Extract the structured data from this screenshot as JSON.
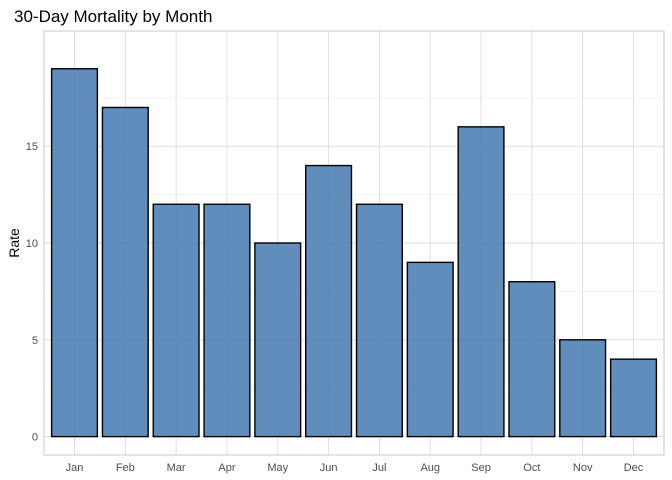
{
  "chart_data": {
    "type": "bar",
    "title": "30-Day Mortality by Month",
    "xlabel": "",
    "ylabel": "Rate",
    "categories": [
      "Jan",
      "Feb",
      "Mar",
      "Apr",
      "May",
      "Jun",
      "Jul",
      "Aug",
      "Sep",
      "Oct",
      "Nov",
      "Dec"
    ],
    "values": [
      19,
      17,
      12,
      12,
      10,
      14,
      12,
      9,
      16,
      8,
      5,
      4
    ],
    "ylim": [
      -0.95,
      20.95
    ],
    "yticks": [
      0,
      5,
      10,
      15
    ],
    "grid": true,
    "legend": "none",
    "colors": {
      "bar_fill": "#4f81b5",
      "bar_outline": "#000000"
    }
  }
}
